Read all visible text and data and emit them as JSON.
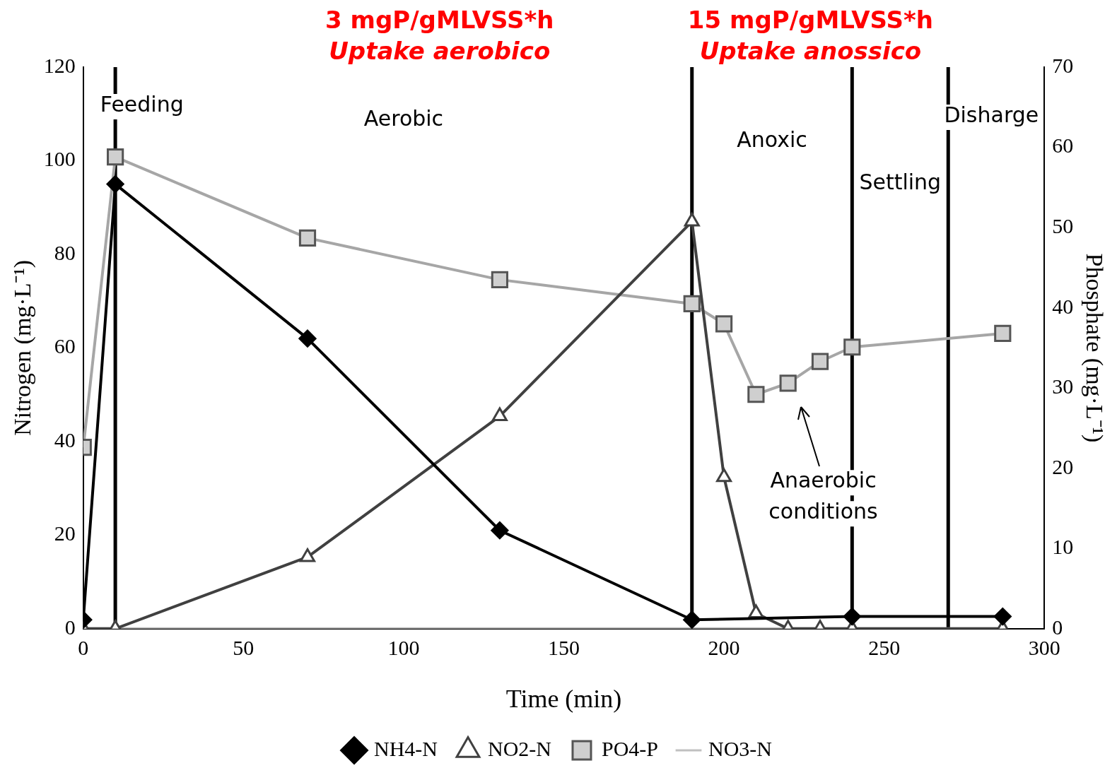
{
  "chart_data": {
    "type": "line",
    "xlabel": "Time (min)",
    "ylabel": "Nitrogen (mg·L⁻¹)",
    "y2label": "Phosphate (mg·L⁻¹)",
    "xlim": [
      0,
      300
    ],
    "xticks": [
      0,
      50,
      100,
      150,
      200,
      250,
      300
    ],
    "ylim": [
      0,
      120
    ],
    "yticks": [
      0,
      20,
      40,
      60,
      80,
      100,
      120
    ],
    "y2lim": [
      0,
      70
    ],
    "y2ticks": [
      0,
      10,
      20,
      30,
      40,
      50,
      60,
      70
    ],
    "grid": false,
    "legend": "bottom",
    "line_style": "solid",
    "series": [
      {
        "name": "NH4-N",
        "color": "#000000",
        "marker": "diamond",
        "x": [
          0,
          10,
          70,
          130,
          190,
          240,
          287
        ],
        "values": [
          1.9,
          95,
          62,
          21,
          1.9,
          2.6,
          2.6
        ]
      },
      {
        "name": "NO2-N",
        "color": "#404040",
        "marker": "triangle",
        "x": [
          0,
          10,
          70,
          130,
          190,
          200,
          210,
          220,
          230,
          240,
          287
        ],
        "values": [
          0,
          0,
          15.3,
          45.4,
          87,
          32.4,
          3.3,
          0,
          0,
          0,
          0
        ]
      },
      {
        "name": "PO4-P",
        "color": "#a6a6a6",
        "marker": "square",
        "axis": "y2",
        "x": [
          0,
          10,
          70,
          130,
          190,
          200,
          210,
          220,
          230,
          240,
          287
        ],
        "values": [
          22.6,
          58.8,
          48.7,
          43.5,
          40.5,
          38,
          29.2,
          30.6,
          33.3,
          35.1,
          36.8
        ]
      },
      {
        "name": "NO3-N",
        "color": "#c0c0c0",
        "marker": "none",
        "x": [
          0,
          10,
          70,
          130,
          190,
          240,
          270,
          287
        ],
        "values": [
          0,
          0,
          0,
          0,
          0,
          0,
          0,
          0
        ]
      }
    ],
    "ref_lines": [
      {
        "axis": "x",
        "value": 10,
        "color": "#000000"
      },
      {
        "axis": "x",
        "value": 190,
        "color": "#000000"
      },
      {
        "axis": "x",
        "value": 240,
        "color": "#000000"
      },
      {
        "axis": "x",
        "value": 270,
        "color": "#000000"
      }
    ],
    "annotations": [
      "3 mgP/gMLVSS*h",
      "Uptake aerobico",
      "15 mgP/gMLVSS*h",
      "Uptake anossico",
      "Feeding",
      "Aerobic",
      "Anoxic",
      "Settling",
      "Disharge",
      "Anaerobic conditions"
    ]
  }
}
